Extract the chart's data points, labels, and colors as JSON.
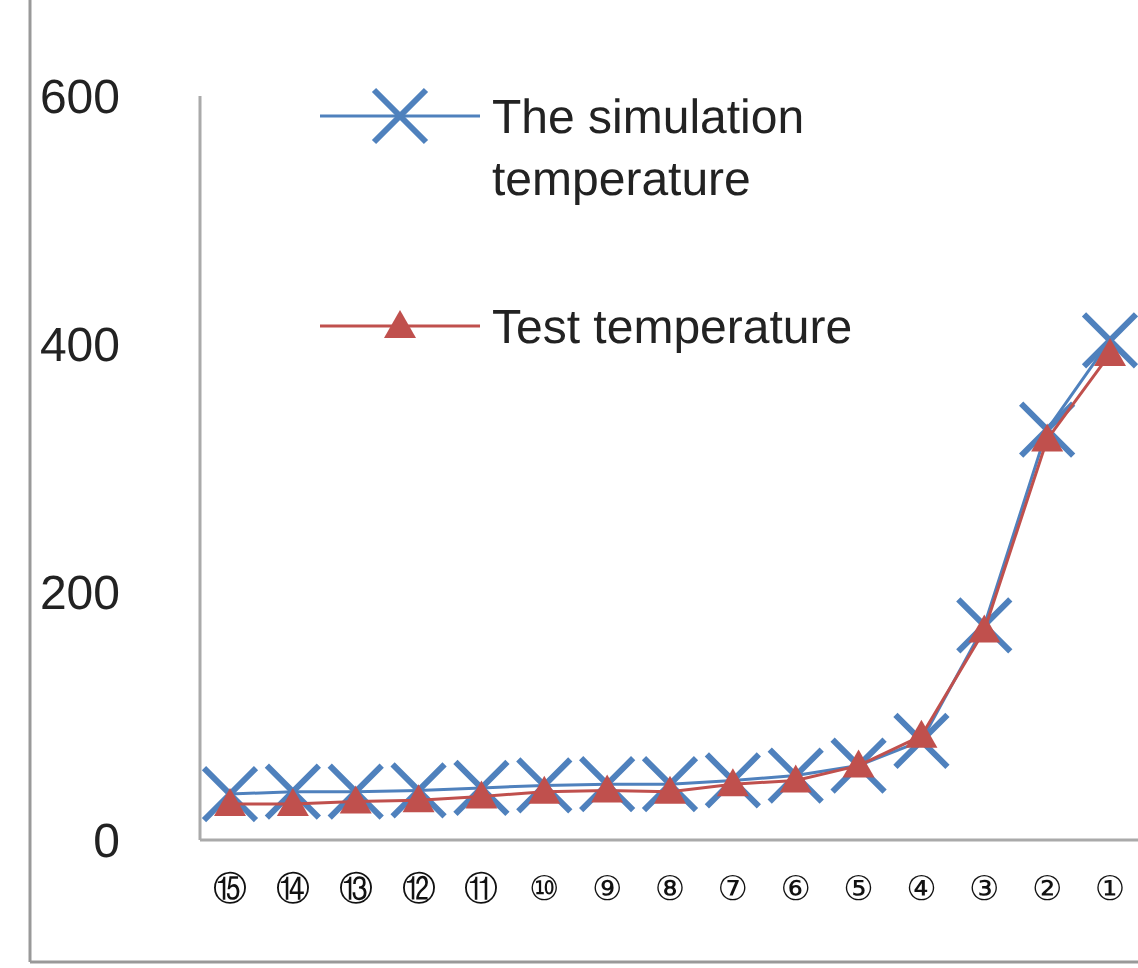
{
  "chart_data": {
    "type": "line",
    "categories": [
      "⑮",
      "⑭",
      "⑬",
      "⑫",
      "⑪",
      "⑩",
      "⑨",
      "⑧",
      "⑦",
      "⑥",
      "⑤",
      "④",
      "③",
      "②",
      "①"
    ],
    "ylim": [
      0,
      600
    ],
    "yticks": [
      0,
      200,
      400,
      600
    ],
    "grid": false,
    "legend": "top",
    "series": [
      {
        "name": "The simulation temperature",
        "color": "#4f81bd",
        "marker": "cross",
        "values": [
          37,
          39,
          39,
          40,
          42,
          44,
          45,
          45,
          48,
          52,
          60,
          80,
          173,
          331,
          403
        ]
      },
      {
        "name": "Test temperature",
        "color": "#c0504d",
        "marker": "triangle",
        "values": [
          29,
          29,
          31,
          32,
          35,
          39,
          40,
          39,
          45,
          48,
          60,
          84,
          169,
          323,
          392
        ]
      }
    ]
  }
}
